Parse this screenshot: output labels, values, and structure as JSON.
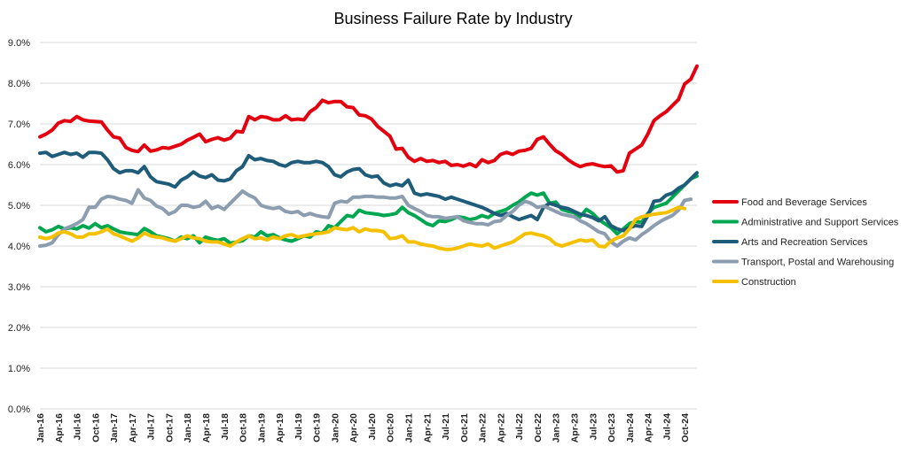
{
  "chart_data": {
    "type": "line",
    "title": "Business Failure Rate by Industry",
    "xlabel": "",
    "ylabel": "",
    "ylim": [
      0,
      9
    ],
    "y_ticks": [
      "0.0%",
      "1.0%",
      "2.0%",
      "3.0%",
      "4.0%",
      "5.0%",
      "6.0%",
      "7.0%",
      "8.0%",
      "9.0%"
    ],
    "x_tick_labels": [
      "Jan-16",
      "Apr-16",
      "Jul-16",
      "Oct-16",
      "Jan-17",
      "Apr-17",
      "Jul-17",
      "Oct-17",
      "Jan-18",
      "Apr-18",
      "Jul-18",
      "Oct-18",
      "Jan-19",
      "Apr-19",
      "Jul-19",
      "Oct-19",
      "Jan-20",
      "Apr-20",
      "Jul-20",
      "Oct-20",
      "Jan-21",
      "Apr-21",
      "Jul-21",
      "Oct-21",
      "Jan-22",
      "Apr-22",
      "Jul-22",
      "Oct-22",
      "Jan-23",
      "Apr-23",
      "Jul-23",
      "Oct-23",
      "Jan-24",
      "Apr-24",
      "Jul-24",
      "Oct-24"
    ],
    "x_start": "Jan-16",
    "x_end": "Oct-24",
    "grid": true,
    "legend_position": "right",
    "series": [
      {
        "name": "Food and Beverage Services",
        "color": "#e3000f",
        "values": [
          6.68,
          6.75,
          6.85,
          7.02,
          7.08,
          7.06,
          7.18,
          7.1,
          7.07,
          7.06,
          7.05,
          6.85,
          6.68,
          6.65,
          6.42,
          6.35,
          6.32,
          6.48,
          6.33,
          6.36,
          6.42,
          6.4,
          6.45,
          6.5,
          6.6,
          6.67,
          6.75,
          6.56,
          6.62,
          6.66,
          6.6,
          6.65,
          6.82,
          6.8,
          7.18,
          7.1,
          7.18,
          7.16,
          7.1,
          7.1,
          7.2,
          7.1,
          7.12,
          7.1,
          7.3,
          7.4,
          7.58,
          7.52,
          7.55,
          7.55,
          7.42,
          7.4,
          7.22,
          7.2,
          7.12,
          6.94,
          6.82,
          6.7,
          6.38,
          6.4,
          6.18,
          6.08,
          6.15,
          6.08,
          6.1,
          6.05,
          6.08,
          5.98,
          6.0,
          5.96,
          6.02,
          5.95,
          6.12,
          6.05,
          6.1,
          6.25,
          6.3,
          6.25,
          6.33,
          6.35,
          6.4,
          6.62,
          6.68,
          6.5,
          6.34,
          6.25,
          6.12,
          6.02,
          5.95,
          6.0,
          6.02,
          5.98,
          5.95,
          5.97,
          5.82,
          5.85,
          6.28,
          6.38,
          6.48,
          6.75,
          7.08,
          7.2,
          7.3,
          7.45,
          7.6,
          7.98,
          8.1,
          8.42
        ]
      },
      {
        "name": "Administrative and Support Services",
        "color": "#00a650",
        "values": [
          4.45,
          4.35,
          4.4,
          4.48,
          4.42,
          4.45,
          4.42,
          4.5,
          4.44,
          4.55,
          4.45,
          4.5,
          4.42,
          4.35,
          4.32,
          4.3,
          4.28,
          4.43,
          4.35,
          4.25,
          4.22,
          4.18,
          4.12,
          4.22,
          4.18,
          4.25,
          4.08,
          4.22,
          4.17,
          4.14,
          4.18,
          4.07,
          4.1,
          4.13,
          4.25,
          4.22,
          4.35,
          4.25,
          4.28,
          4.2,
          4.15,
          4.12,
          4.18,
          4.25,
          4.22,
          4.35,
          4.32,
          4.5,
          4.45,
          4.6,
          4.75,
          4.72,
          4.88,
          4.82,
          4.8,
          4.78,
          4.75,
          4.77,
          4.8,
          4.95,
          4.82,
          4.75,
          4.65,
          4.55,
          4.5,
          4.62,
          4.6,
          4.65,
          4.72,
          4.7,
          4.65,
          4.68,
          4.75,
          4.7,
          4.8,
          4.85,
          4.9,
          5.0,
          5.08,
          5.2,
          5.3,
          5.25,
          5.3,
          5.05,
          5.08,
          4.9,
          4.85,
          4.82,
          4.72,
          4.9,
          4.8,
          4.65,
          4.55,
          4.45,
          4.3,
          4.42,
          4.55,
          4.6,
          4.58,
          4.8,
          4.95,
          5.0,
          5.05,
          5.2,
          5.35,
          5.5,
          5.65,
          5.72
        ]
      },
      {
        "name": "Arts and Recreation Services",
        "color": "#1f5c7a",
        "values": [
          6.28,
          6.3,
          6.2,
          6.25,
          6.3,
          6.25,
          6.28,
          6.18,
          6.3,
          6.3,
          6.28,
          6.12,
          5.9,
          5.8,
          5.85,
          5.85,
          5.8,
          5.95,
          5.7,
          5.58,
          5.55,
          5.52,
          5.45,
          5.62,
          5.7,
          5.82,
          5.72,
          5.68,
          5.75,
          5.62,
          5.6,
          5.65,
          5.85,
          5.95,
          6.22,
          6.12,
          6.15,
          6.1,
          6.08,
          6.0,
          5.96,
          6.05,
          6.08,
          6.05,
          6.05,
          6.08,
          6.05,
          5.95,
          5.75,
          5.7,
          5.82,
          5.88,
          5.9,
          5.75,
          5.7,
          5.72,
          5.55,
          5.48,
          5.52,
          5.48,
          5.62,
          5.3,
          5.25,
          5.28,
          5.25,
          5.22,
          5.15,
          5.2,
          5.15,
          5.1,
          5.05,
          5.0,
          4.95,
          4.88,
          4.8,
          4.75,
          4.8,
          4.72,
          4.65,
          4.7,
          4.75,
          4.65,
          4.95,
          5.05,
          5.0,
          4.95,
          4.92,
          4.85,
          4.78,
          4.75,
          4.7,
          4.62,
          4.72,
          4.5,
          4.42,
          4.38,
          4.45,
          4.5,
          4.48,
          4.75,
          5.1,
          5.12,
          5.25,
          5.3,
          5.42,
          5.5,
          5.65,
          5.8
        ]
      },
      {
        "name": "Transport, Postal and Warehousing",
        "color": "#8c9db0",
        "values": [
          4.0,
          4.02,
          4.08,
          4.28,
          4.42,
          4.48,
          4.55,
          4.65,
          4.95,
          4.95,
          5.15,
          5.22,
          5.2,
          5.15,
          5.12,
          5.05,
          5.38,
          5.18,
          5.12,
          4.98,
          4.92,
          4.78,
          4.85,
          5.0,
          5.0,
          4.95,
          4.98,
          5.1,
          4.92,
          4.98,
          4.9,
          5.05,
          5.2,
          5.35,
          5.25,
          5.18,
          5.0,
          4.95,
          4.92,
          4.95,
          4.85,
          4.82,
          4.85,
          4.75,
          4.8,
          4.75,
          4.72,
          4.7,
          5.05,
          5.1,
          5.08,
          5.2,
          5.2,
          5.22,
          5.22,
          5.2,
          5.2,
          5.18,
          5.18,
          5.22,
          5.0,
          4.92,
          4.85,
          4.75,
          4.72,
          4.72,
          4.68,
          4.7,
          4.72,
          4.62,
          4.58,
          4.55,
          4.55,
          4.52,
          4.6,
          4.62,
          4.75,
          4.85,
          5.0,
          5.1,
          5.05,
          4.95,
          4.98,
          4.92,
          4.85,
          4.78,
          4.75,
          4.72,
          4.62,
          4.55,
          4.45,
          4.35,
          4.3,
          4.1,
          4.0,
          4.12,
          4.2,
          4.15,
          4.28,
          4.38,
          4.5,
          4.6,
          4.68,
          4.75,
          4.88,
          5.12,
          5.15
        ]
      },
      {
        "name": "Construction",
        "color": "#f5c000",
        "values": [
          4.22,
          4.18,
          4.22,
          4.32,
          4.35,
          4.3,
          4.22,
          4.22,
          4.3,
          4.3,
          4.35,
          4.42,
          4.3,
          4.25,
          4.18,
          4.12,
          4.2,
          4.32,
          4.25,
          4.22,
          4.2,
          4.15,
          4.12,
          4.18,
          4.25,
          4.2,
          4.18,
          4.12,
          4.1,
          4.1,
          4.05,
          4.0,
          4.1,
          4.18,
          4.25,
          4.18,
          4.2,
          4.15,
          4.22,
          4.18,
          4.25,
          4.28,
          4.22,
          4.25,
          4.28,
          4.3,
          4.32,
          4.35,
          4.45,
          4.42,
          4.4,
          4.45,
          4.35,
          4.42,
          4.38,
          4.38,
          4.35,
          4.18,
          4.2,
          4.25,
          4.1,
          4.1,
          4.05,
          4.02,
          4.0,
          3.95,
          3.92,
          3.92,
          3.95,
          4.0,
          4.05,
          4.02,
          4.0,
          4.05,
          3.95,
          4.0,
          4.05,
          4.1,
          4.2,
          4.3,
          4.32,
          4.28,
          4.25,
          4.18,
          4.05,
          4.0,
          4.05,
          4.1,
          4.15,
          4.12,
          4.15,
          4.0,
          3.98,
          4.12,
          4.2,
          4.25,
          4.42,
          4.65,
          4.72,
          4.75,
          4.78,
          4.8,
          4.82,
          4.88,
          4.95,
          4.92
        ]
      }
    ]
  }
}
